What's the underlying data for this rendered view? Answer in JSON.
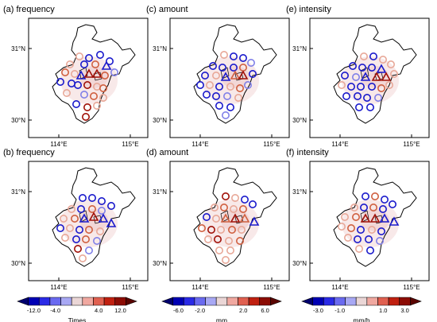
{
  "panels": [
    {
      "id": "a",
      "title": "(a) frequency"
    },
    {
      "id": "c",
      "title": "(c) amount"
    },
    {
      "id": "e",
      "title": "(e) intensity"
    },
    {
      "id": "b",
      "title": "(b) frequency"
    },
    {
      "id": "d",
      "title": "(d) amount"
    },
    {
      "id": "f",
      "title": "(f) intensity"
    }
  ],
  "axes": {
    "lat_ticks": [
      "31°N",
      "30°N"
    ],
    "lon_ticks": [
      "114°E",
      "115°E"
    ]
  },
  "colorbars": [
    {
      "unit": "Times",
      "ticks": [
        "-12.0",
        "-4.0",
        "4.0",
        "12.0"
      ]
    },
    {
      "unit": "mm",
      "ticks": [
        "-6.0",
        "-2.0",
        "2.0",
        "6.0"
      ]
    },
    {
      "unit": "mm/h",
      "ticks": [
        "-3.0",
        "-1.0",
        "1.0",
        "3.0"
      ]
    }
  ],
  "colors": {
    "scale": [
      "#00006e",
      "#0000b4",
      "#2a2ae6",
      "#6a6af0",
      "#a8a8f4",
      "#ead6d6",
      "#f0a8a0",
      "#e06050",
      "#c02010",
      "#8c0c04",
      "#5a0400"
    ],
    "neg_strong": "#1a1acc",
    "neg_weak": "#8080e8",
    "pos_weak": "#e8a898",
    "pos_mid": "#d06040",
    "pos_strong": "#a01008"
  }
}
